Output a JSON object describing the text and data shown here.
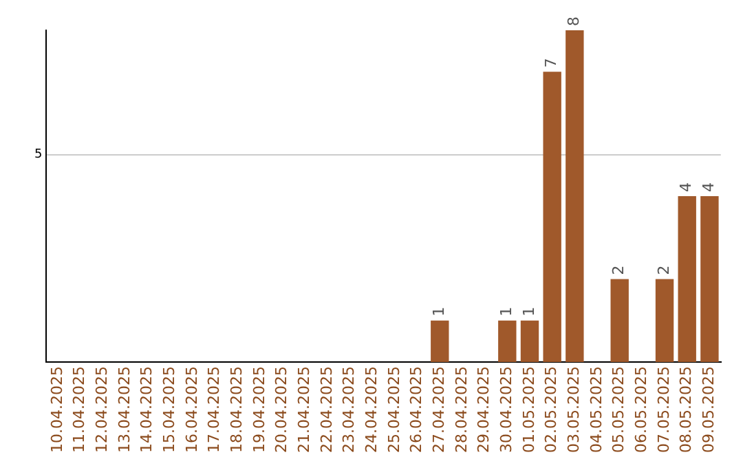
{
  "chart_data": {
    "type": "bar",
    "categories": [
      "10.04.2025",
      "11.04.2025",
      "12.04.2025",
      "13.04.2025",
      "14.04.2025",
      "15.04.2025",
      "16.04.2025",
      "17.04.2025",
      "18.04.2025",
      "19.04.2025",
      "20.04.2025",
      "21.04.2025",
      "22.04.2025",
      "23.04.2025",
      "24.04.2025",
      "25.04.2025",
      "26.04.2025",
      "27.04.2025",
      "28.04.2025",
      "29.04.2025",
      "30.04.2025",
      "01.05.2025",
      "02.05.2025",
      "03.05.2025",
      "04.05.2025",
      "05.05.2025",
      "06.05.2025",
      "07.05.2025",
      "08.05.2025",
      "09.05.2025"
    ],
    "values": [
      null,
      null,
      null,
      null,
      null,
      null,
      null,
      null,
      null,
      null,
      null,
      null,
      null,
      null,
      null,
      null,
      null,
      1,
      null,
      null,
      1,
      1,
      7,
      8,
      null,
      2,
      null,
      2,
      4,
      4
    ],
    "data_labels": true,
    "color": "#a0592b",
    "ylim": [
      0,
      8
    ],
    "yticks": [
      5
    ],
    "grid": "y",
    "legend": false
  }
}
